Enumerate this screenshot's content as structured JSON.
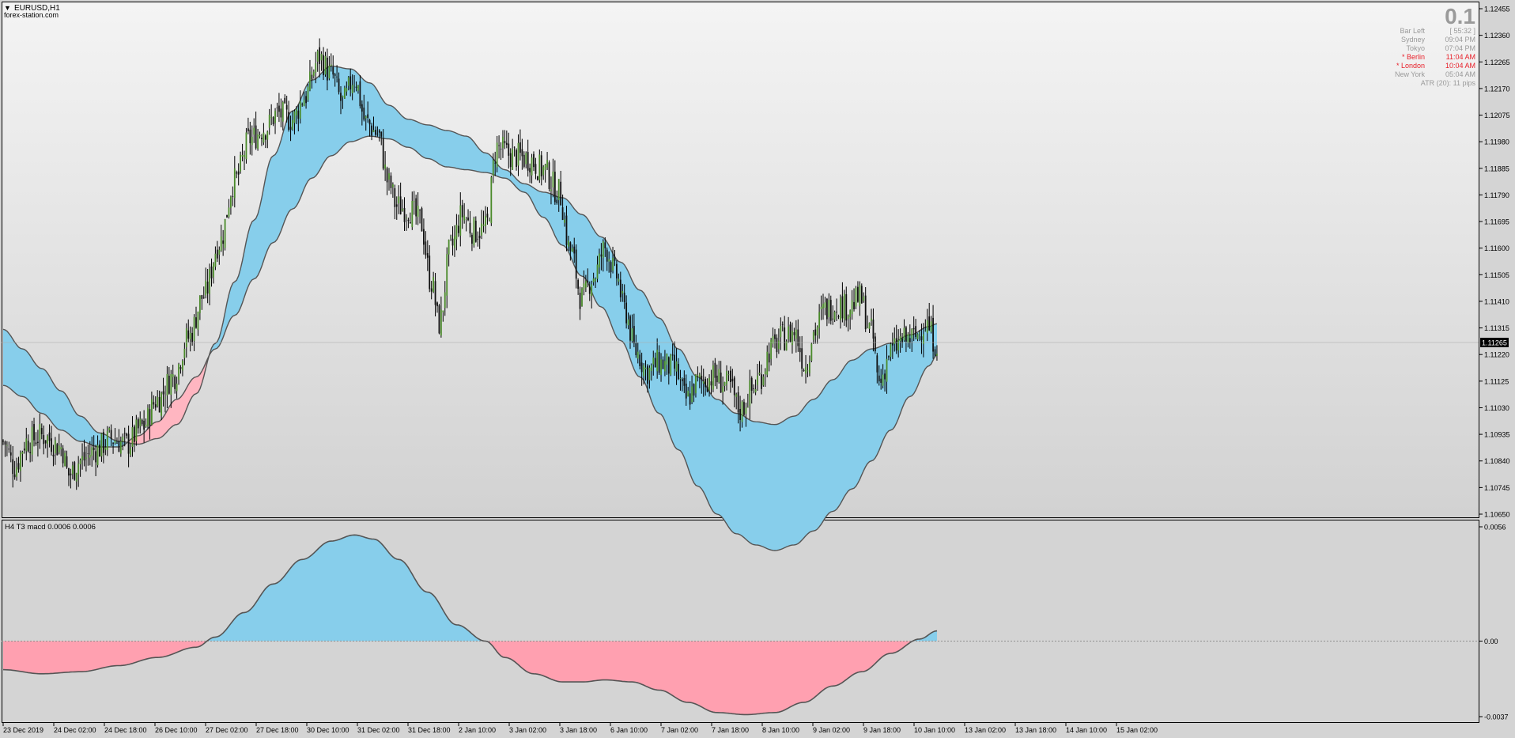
{
  "main_panel": {
    "symbol": "EURUSD,H1",
    "watermark": "forex-station.com",
    "big_value": "0.1",
    "info_lines": [
      {
        "label": "Bar Left",
        "value": "[ 55:32 ]",
        "color": "#9a9a9a"
      },
      {
        "label": "Sydney",
        "value": "09:04 PM",
        "color": "#9a9a9a"
      },
      {
        "label": "Tokyo",
        "value": "07:04 PM",
        "color": "#9a9a9a"
      },
      {
        "label": "* Berlin",
        "value": "11:04 AM",
        "color": "#e8202a"
      },
      {
        "label": "* London",
        "value": "10:04 AM",
        "color": "#e8202a"
      },
      {
        "label": "New York",
        "value": "05:04 AM",
        "color": "#9a9a9a"
      },
      {
        "label": "ATR (20): 11 pips",
        "value": "",
        "color": "#9a9a9a"
      }
    ],
    "current_price": "1.11265",
    "colors": {
      "up_candle": "#4a8a2a",
      "down_candle": "#101010",
      "band_blue": "#87ceeb",
      "band_pink": "#ffb6c1",
      "band_line": "#555555"
    }
  },
  "sub_panel": {
    "title": "H4 T3 macd 0.0006 0.0006",
    "colors": {
      "fill_positive": "#87ceeb",
      "fill_negative": "#ffa0b0",
      "line": "#555555",
      "zero_line": "#909090"
    }
  },
  "x_axis_labels": [
    "23 Dec 2019",
    "24 Dec 02:00",
    "24 Dec 18:00",
    "26 Dec 10:00",
    "27 Dec 02:00",
    "27 Dec 18:00",
    "30 Dec 10:00",
    "31 Dec 02:00",
    "31 Dec 18:00",
    "2 Jan 10:00",
    "3 Jan 02:00",
    "3 Jan 18:00",
    "6 Jan 10:00",
    "7 Jan 02:00",
    "7 Jan 18:00",
    "8 Jan 10:00",
    "9 Jan 02:00",
    "9 Jan 18:00",
    "10 Jan 10:00",
    "13 Jan 02:00",
    "13 Jan 18:00",
    "14 Jan 10:00",
    "15 Jan 02:00"
  ],
  "chart_data": [
    {
      "type": "candlestick",
      "title": "EURUSD,H1",
      "y_tick_labels": [
        "1.12455",
        "1.12360",
        "1.12265",
        "1.12170",
        "1.12075",
        "1.11980",
        "1.11885",
        "1.11790",
        "1.11695",
        "1.11600",
        "1.11505",
        "1.11410",
        "1.11315",
        "1.11220",
        "1.11125",
        "1.11030",
        "1.10935",
        "1.10840",
        "1.10745",
        "1.10650"
      ],
      "ylim": [
        1.1065,
        1.12455
      ],
      "close_anchors": [
        [
          0,
          1.1091
        ],
        [
          6,
          1.1082
        ],
        [
          12,
          1.1091
        ],
        [
          20,
          1.1093
        ],
        [
          30,
          1.1089
        ],
        [
          34,
          1.1079
        ],
        [
          40,
          1.1084
        ],
        [
          48,
          1.1088
        ],
        [
          56,
          1.1092
        ],
        [
          64,
          1.109
        ],
        [
          72,
          1.1096
        ],
        [
          80,
          1.1106
        ],
        [
          88,
          1.1114
        ],
        [
          96,
          1.1128
        ],
        [
          104,
          1.1143
        ],
        [
          112,
          1.1162
        ],
        [
          120,
          1.1184
        ],
        [
          128,
          1.1199
        ],
        [
          136,
          1.1203
        ],
        [
          142,
          1.1208
        ],
        [
          150,
          1.1206
        ],
        [
          156,
          1.1214
        ],
        [
          164,
          1.1228
        ],
        [
          170,
          1.1222
        ],
        [
          176,
          1.1212
        ],
        [
          182,
          1.1221
        ],
        [
          188,
          1.1205
        ],
        [
          194,
          1.1201
        ],
        [
          200,
          1.1183
        ],
        [
          204,
          1.1175
        ],
        [
          210,
          1.1174
        ],
        [
          216,
          1.117
        ],
        [
          222,
          1.1148
        ],
        [
          226,
          1.1133
        ],
        [
          232,
          1.116
        ],
        [
          238,
          1.1172
        ],
        [
          244,
          1.1166
        ],
        [
          250,
          1.1167
        ],
        [
          256,
          1.1196
        ],
        [
          264,
          1.1193
        ],
        [
          272,
          1.1192
        ],
        [
          280,
          1.1188
        ],
        [
          288,
          1.118
        ],
        [
          294,
          1.1159
        ],
        [
          300,
          1.1142
        ],
        [
          306,
          1.115
        ],
        [
          312,
          1.116
        ],
        [
          318,
          1.115
        ],
        [
          322,
          1.1138
        ],
        [
          328,
          1.1123
        ],
        [
          334,
          1.1116
        ],
        [
          340,
          1.1119
        ],
        [
          348,
          1.1117
        ],
        [
          354,
          1.1106
        ],
        [
          360,
          1.1112
        ],
        [
          368,
          1.1114
        ],
        [
          376,
          1.1111
        ],
        [
          382,
          1.1102
        ],
        [
          388,
          1.1109
        ],
        [
          392,
          1.1114
        ],
        [
          398,
          1.1124
        ],
        [
          404,
          1.1128
        ],
        [
          410,
          1.113
        ],
        [
          416,
          1.1118
        ],
        [
          420,
          1.113
        ],
        [
          426,
          1.1138
        ],
        [
          432,
          1.114
        ],
        [
          438,
          1.1139
        ],
        [
          444,
          1.1142
        ],
        [
          450,
          1.113
        ],
        [
          454,
          1.1112
        ],
        [
          460,
          1.1123
        ],
        [
          466,
          1.1127
        ],
        [
          472,
          1.1128
        ],
        [
          478,
          1.1133
        ],
        [
          484,
          1.1126
        ]
      ],
      "bands": {
        "line_a": [
          [
            0,
            1.1131
          ],
          [
            10,
            1.1124
          ],
          [
            20,
            1.1117
          ],
          [
            30,
            1.1109
          ],
          [
            40,
            1.11
          ],
          [
            50,
            1.1094
          ],
          [
            60,
            1.1091
          ],
          [
            70,
            1.109
          ],
          [
            80,
            1.1092
          ],
          [
            90,
            1.1097
          ],
          [
            100,
            1.1108
          ],
          [
            110,
            1.1126
          ],
          [
            120,
            1.1148
          ],
          [
            130,
            1.117
          ],
          [
            140,
            1.1193
          ],
          [
            150,
            1.1209
          ],
          [
            160,
            1.122
          ],
          [
            170,
            1.1225
          ],
          [
            180,
            1.1224
          ],
          [
            190,
            1.1219
          ],
          [
            200,
            1.1211
          ],
          [
            210,
            1.1206
          ],
          [
            220,
            1.1204
          ],
          [
            230,
            1.1202
          ],
          [
            240,
            1.12
          ],
          [
            250,
            1.1194
          ],
          [
            260,
            1.1188
          ],
          [
            270,
            1.1183
          ],
          [
            280,
            1.118
          ],
          [
            290,
            1.1178
          ],
          [
            300,
            1.1172
          ],
          [
            310,
            1.1164
          ],
          [
            320,
            1.1155
          ],
          [
            330,
            1.1145
          ],
          [
            340,
            1.1135
          ],
          [
            350,
            1.1124
          ],
          [
            360,
            1.1114
          ],
          [
            370,
            1.1106
          ],
          [
            380,
            1.1101
          ],
          [
            390,
            1.1098
          ],
          [
            400,
            1.1097
          ],
          [
            410,
            1.11
          ],
          [
            420,
            1.1106
          ],
          [
            430,
            1.1113
          ],
          [
            440,
            1.112
          ],
          [
            450,
            1.1124
          ],
          [
            460,
            1.1126
          ],
          [
            470,
            1.1129
          ],
          [
            480,
            1.1132
          ],
          [
            484,
            1.1133
          ]
        ],
        "line_b": [
          [
            0,
            1.1111
          ],
          [
            10,
            1.1107
          ],
          [
            20,
            1.1101
          ],
          [
            30,
            1.1095
          ],
          [
            40,
            1.1091
          ],
          [
            50,
            1.1089
          ],
          [
            60,
            1.1089
          ],
          [
            70,
            1.1093
          ],
          [
            80,
            1.1098
          ],
          [
            90,
            1.1106
          ],
          [
            100,
            1.1114
          ],
          [
            110,
            1.1124
          ],
          [
            120,
            1.1136
          ],
          [
            130,
            1.1149
          ],
          [
            140,
            1.1162
          ],
          [
            150,
            1.1174
          ],
          [
            160,
            1.1185
          ],
          [
            170,
            1.1193
          ],
          [
            180,
            1.1198
          ],
          [
            190,
            1.12
          ],
          [
            200,
            1.1199
          ],
          [
            210,
            1.1196
          ],
          [
            220,
            1.1192
          ],
          [
            230,
            1.1189
          ],
          [
            240,
            1.1188
          ],
          [
            250,
            1.1187
          ],
          [
            260,
            1.1185
          ],
          [
            270,
            1.118
          ],
          [
            280,
            1.1171
          ],
          [
            290,
            1.1161
          ],
          [
            300,
            1.115
          ],
          [
            310,
            1.1139
          ],
          [
            320,
            1.1127
          ],
          [
            330,
            1.1114
          ],
          [
            340,
            1.1101
          ],
          [
            350,
            1.1088
          ],
          [
            360,
            1.1075
          ],
          [
            370,
            1.1065
          ],
          [
            380,
            1.1058
          ],
          [
            390,
            1.1054
          ],
          [
            400,
            1.1052
          ],
          [
            410,
            1.1054
          ],
          [
            420,
            1.1059
          ],
          [
            430,
            1.1066
          ],
          [
            440,
            1.1074
          ],
          [
            450,
            1.1084
          ],
          [
            460,
            1.1095
          ],
          [
            470,
            1.1107
          ],
          [
            480,
            1.1118
          ],
          [
            484,
            1.1122
          ]
        ]
      }
    },
    {
      "type": "area",
      "title": "H4 T3 macd 0.0006 0.0006",
      "y_tick_labels": [
        "0.0056",
        "0.00",
        "-0.0037"
      ],
      "ylim": [
        -0.0037,
        0.0056
      ],
      "series": [
        {
          "values": [
            [
              0,
              -0.0014
            ],
            [
              20,
              -0.0016
            ],
            [
              40,
              -0.0015
            ],
            [
              60,
              -0.0012
            ],
            [
              80,
              -0.0008
            ],
            [
              100,
              -0.0003
            ],
            [
              110,
              0.0002
            ],
            [
              125,
              0.0014
            ],
            [
              140,
              0.0028
            ],
            [
              155,
              0.004
            ],
            [
              170,
              0.0049
            ],
            [
              182,
              0.0052
            ],
            [
              192,
              0.005
            ],
            [
              205,
              0.004
            ],
            [
              220,
              0.0024
            ],
            [
              235,
              0.0008
            ],
            [
              250,
              0.0
            ],
            [
              260,
              -0.0008
            ],
            [
              275,
              -0.0016
            ],
            [
              290,
              -0.002
            ],
            [
              300,
              -0.002
            ],
            [
              312,
              -0.0019
            ],
            [
              326,
              -0.002
            ],
            [
              340,
              -0.0024
            ],
            [
              355,
              -0.003
            ],
            [
              370,
              -0.0035
            ],
            [
              385,
              -0.0036
            ],
            [
              400,
              -0.0035
            ],
            [
              415,
              -0.003
            ],
            [
              430,
              -0.0022
            ],
            [
              445,
              -0.0015
            ],
            [
              460,
              -0.0006
            ],
            [
              475,
              0.0001
            ],
            [
              484,
              0.0005
            ]
          ]
        }
      ]
    }
  ]
}
